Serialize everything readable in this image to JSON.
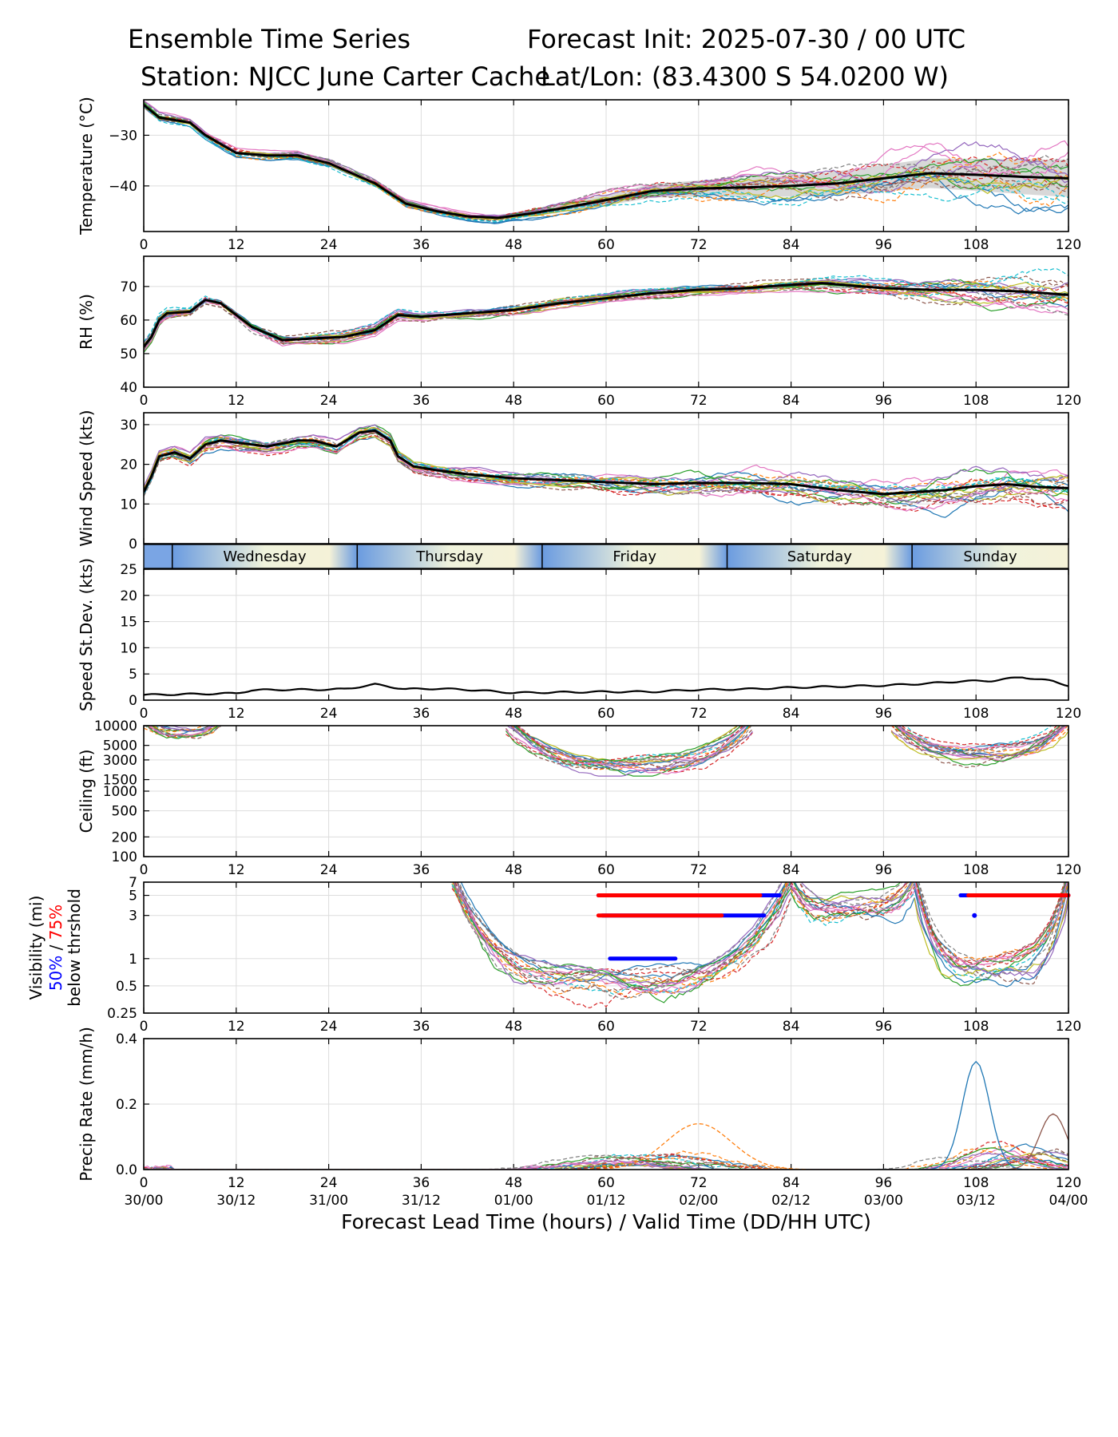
{
  "header": {
    "title_left": "Ensemble Time Series",
    "title_right": "Forecast Init: 2025-07-30 / 00 UTC",
    "station": "Station: NJCC June Carter Cache",
    "latlon": "Lat/Lon: (83.4300 S 54.0200 W)"
  },
  "xaxis": {
    "lead_ticks": [
      "0",
      "12",
      "24",
      "36",
      "48",
      "60",
      "72",
      "84",
      "96",
      "108",
      "120"
    ],
    "valid_ticks": [
      "30/00",
      "30/12",
      "31/00",
      "31/12",
      "01/00",
      "01/12",
      "02/00",
      "02/12",
      "03/00",
      "03/12",
      "04/00"
    ],
    "label": "Forecast Lead Time (hours) / Valid Time (DD/HH UTC)",
    "range": [
      0,
      120
    ]
  },
  "day_strip": {
    "labels": [
      "Wednesday",
      "Thursday",
      "Friday",
      "Saturday",
      "Sunday"
    ],
    "boundaries_hours": [
      3.7,
      27.7,
      51.7,
      75.7,
      99.7
    ]
  },
  "colors": {
    "mean": "#000000",
    "grid": "#dddddd",
    "members": [
      "#1f77b4",
      "#ff7f0e",
      "#2ca02c",
      "#d62728",
      "#9467bd",
      "#8c564b",
      "#e377c2",
      "#7f7f7f",
      "#bcbd22",
      "#17becf"
    ],
    "vis50": "#0000ff",
    "vis75": "#ff0000",
    "spread": "#c8c8c8"
  },
  "chart_data": [
    {
      "type": "line",
      "ylabel": "Temperature (°C)",
      "ylim": [
        -49,
        -23
      ],
      "yticks": [
        -30,
        -40
      ],
      "ytick_labels": [
        "−30",
        "−40"
      ],
      "mean": [
        [
          0,
          -24
        ],
        [
          2,
          -26.5
        ],
        [
          6,
          -27.5
        ],
        [
          8,
          -30
        ],
        [
          12,
          -33.5
        ],
        [
          16,
          -34
        ],
        [
          20,
          -34
        ],
        [
          24,
          -35.5
        ],
        [
          30,
          -39.5
        ],
        [
          34,
          -43.5
        ],
        [
          38,
          -45
        ],
        [
          42,
          -46
        ],
        [
          46,
          -46.3
        ],
        [
          50,
          -45.5
        ],
        [
          54,
          -44.5
        ],
        [
          60,
          -42.8
        ],
        [
          66,
          -41
        ],
        [
          72,
          -40.5
        ],
        [
          78,
          -40.3
        ],
        [
          84,
          -40
        ],
        [
          90,
          -39.5
        ],
        [
          96,
          -38.5
        ],
        [
          102,
          -37.5
        ],
        [
          108,
          -37.8
        ],
        [
          114,
          -38.2
        ],
        [
          120,
          -38.5
        ]
      ],
      "spread_low": [
        -40.5,
        -40.3,
        -40.2,
        -40.5,
        -40.8,
        -41,
        -41,
        -41.5,
        -42
      ],
      "spread_high": [
        -40,
        -39.8,
        -39.5,
        -38.5,
        -36.5,
        -36,
        -36,
        -36,
        -36
      ]
    },
    {
      "type": "line",
      "ylabel": "RH (%)",
      "ylim": [
        40,
        79
      ],
      "yticks": [
        40,
        50,
        60,
        70
      ],
      "mean": [
        [
          0,
          52
        ],
        [
          1,
          55
        ],
        [
          2,
          60
        ],
        [
          3,
          62
        ],
        [
          6,
          62.5
        ],
        [
          8,
          66
        ],
        [
          10,
          65
        ],
        [
          14,
          58
        ],
        [
          18,
          54
        ],
        [
          22,
          54.5
        ],
        [
          26,
          55
        ],
        [
          30,
          57
        ],
        [
          33,
          61.5
        ],
        [
          36,
          61
        ],
        [
          42,
          62
        ],
        [
          48,
          63
        ],
        [
          54,
          65
        ],
        [
          60,
          66.5
        ],
        [
          66,
          68
        ],
        [
          72,
          69
        ],
        [
          78,
          69.5
        ],
        [
          84,
          70.5
        ],
        [
          88,
          71
        ],
        [
          96,
          69.5
        ],
        [
          102,
          69
        ],
        [
          108,
          69
        ],
        [
          114,
          68.5
        ],
        [
          120,
          67.5
        ]
      ]
    },
    {
      "type": "line",
      "ylabel": "Wind Speed (kts)",
      "ylim": [
        0,
        33
      ],
      "yticks": [
        0,
        10,
        20,
        30
      ],
      "mean": [
        [
          0,
          13
        ],
        [
          1,
          17
        ],
        [
          2,
          22
        ],
        [
          4,
          23
        ],
        [
          6,
          21.5
        ],
        [
          8,
          25
        ],
        [
          10,
          26
        ],
        [
          14,
          25
        ],
        [
          16,
          24.5
        ],
        [
          20,
          26
        ],
        [
          22,
          26
        ],
        [
          25,
          24.5
        ],
        [
          28,
          28
        ],
        [
          30,
          28.5
        ],
        [
          32,
          26
        ],
        [
          33,
          22
        ],
        [
          35,
          19.5
        ],
        [
          38,
          18.5
        ],
        [
          42,
          17.5
        ],
        [
          48,
          16.5
        ],
        [
          54,
          16
        ],
        [
          60,
          15.5
        ],
        [
          66,
          15
        ],
        [
          72,
          15.3
        ],
        [
          78,
          15.3
        ],
        [
          84,
          15
        ],
        [
          90,
          13.5
        ],
        [
          96,
          12.5
        ],
        [
          100,
          13
        ],
        [
          104,
          13.5
        ],
        [
          108,
          14.5
        ],
        [
          112,
          15
        ],
        [
          116,
          14.3
        ],
        [
          120,
          14
        ]
      ]
    },
    {
      "type": "line",
      "ylabel": "Speed St.Dev. (kts)",
      "ylim": [
        0,
        25
      ],
      "yticks": [
        0,
        5,
        10,
        15,
        20,
        25
      ],
      "mean": [
        [
          0,
          1
        ],
        [
          4,
          1.1
        ],
        [
          8,
          1.2
        ],
        [
          12,
          1.3
        ],
        [
          14,
          1.9
        ],
        [
          18,
          2.0
        ],
        [
          22,
          2.0
        ],
        [
          26,
          2.1
        ],
        [
          30,
          3.0
        ],
        [
          34,
          2.1
        ],
        [
          38,
          2.2
        ],
        [
          42,
          2.0
        ],
        [
          48,
          1.4
        ],
        [
          54,
          1.5
        ],
        [
          60,
          1.6
        ],
        [
          66,
          1.6
        ],
        [
          72,
          2.0
        ],
        [
          78,
          2.1
        ],
        [
          84,
          2.4
        ],
        [
          90,
          2.6
        ],
        [
          96,
          2.8
        ],
        [
          102,
          3.2
        ],
        [
          106,
          3.6
        ],
        [
          110,
          3.7
        ],
        [
          114,
          4.4
        ],
        [
          118,
          3.6
        ],
        [
          120,
          2.8
        ]
      ]
    },
    {
      "type": "line",
      "ylabel": "Ceiling (ft)",
      "scale": "log",
      "ylim": [
        100,
        10000
      ],
      "yticks": [
        100,
        200,
        500,
        1000,
        1500,
        3000,
        5000,
        10000
      ],
      "ytick_labels": [
        "100",
        "200",
        "500",
        "1000",
        "1500",
        "3000",
        "5000",
        "10000"
      ],
      "member_windows_hours": [
        [
          0,
          10
        ],
        [
          47,
          79
        ],
        [
          97,
          120
        ]
      ]
    },
    {
      "type": "line",
      "ylabel": "Visibility (mi)",
      "ylabel_50": "50%",
      "ylabel_sep": "/",
      "ylabel_75": "75%",
      "ylabel_2": "below thrshold",
      "scale": "log",
      "ylim": [
        0.25,
        7
      ],
      "yticks": [
        0.25,
        0.5,
        1,
        3,
        5,
        7
      ],
      "ytick_labels": [
        "0.25",
        "0.5",
        "1",
        "3",
        "5",
        "7"
      ],
      "threshold_bars": [
        {
          "color": "blue",
          "y": 5,
          "x": [
            59,
            82.5
          ]
        },
        {
          "color": "red",
          "y": 5,
          "x": [
            59,
            80
          ]
        },
        {
          "color": "blue",
          "y": 3,
          "x": [
            59.5,
            80.5
          ]
        },
        {
          "color": "red",
          "y": 3,
          "x": [
            59,
            75
          ]
        },
        {
          "color": "blue",
          "y": 1,
          "x": [
            60.5,
            69
          ]
        },
        {
          "color": "blue",
          "y": 5,
          "x": [
            106,
            120
          ]
        },
        {
          "color": "red",
          "y": 5,
          "x": [
            107,
            120
          ]
        },
        {
          "color": "blue",
          "y": 3,
          "x": [
            107.8,
            107.8
          ]
        }
      ]
    },
    {
      "type": "line",
      "ylabel": "Precip Rate (mm/h)",
      "ylim": [
        0,
        0.4
      ],
      "yticks": [
        0.0,
        0.2,
        0.4
      ],
      "ytick_labels": [
        "0.0",
        "0.2",
        "0.4"
      ],
      "peaks": [
        {
          "x": 72,
          "y": 0.14
        },
        {
          "x": 108,
          "y": 0.33
        },
        {
          "x": 118,
          "y": 0.17
        }
      ]
    }
  ]
}
